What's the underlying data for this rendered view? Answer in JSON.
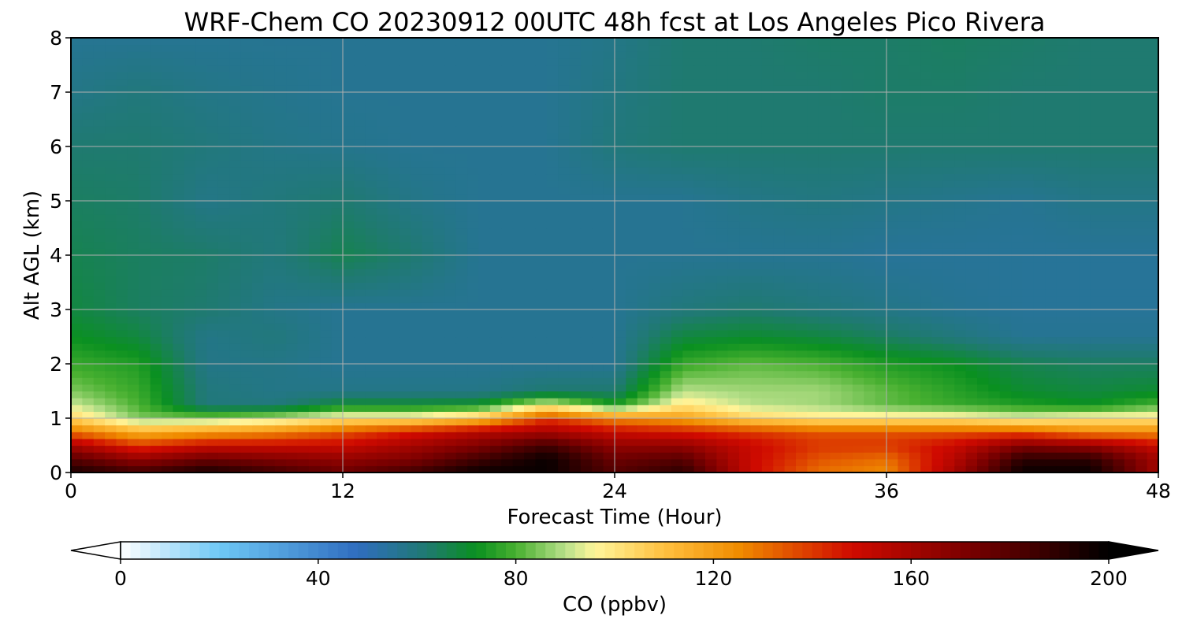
{
  "chart_data": {
    "type": "heatmap",
    "title": "WRF-Chem CO  20230912 00UTC 48h fcst at Los Angeles Pico Rivera",
    "xlabel": "Forecast Time (Hour)",
    "ylabel": "Alt AGL (km)",
    "xlim": [
      0,
      48
    ],
    "ylim": [
      0,
      8
    ],
    "xticks": [
      0,
      12,
      24,
      36,
      48
    ],
    "yticks": [
      0,
      1,
      2,
      3,
      4,
      5,
      6,
      7,
      8
    ],
    "grid": true,
    "x": [
      0,
      3,
      6,
      9,
      12,
      15,
      18,
      21,
      24,
      27,
      30,
      33,
      36,
      39,
      42,
      45,
      48
    ],
    "y": [
      0,
      0.25,
      0.5,
      0.75,
      1,
      1.25,
      1.5,
      2,
      2.5,
      3,
      4,
      5,
      6,
      7,
      8
    ],
    "z": [
      [
        195,
        185,
        195,
        185,
        175,
        185,
        198,
        198,
        180,
        190,
        150,
        130,
        125,
        160,
        198,
        198,
        160
      ],
      [
        180,
        165,
        175,
        170,
        165,
        170,
        185,
        198,
        175,
        180,
        150,
        135,
        130,
        155,
        190,
        190,
        160
      ],
      [
        160,
        140,
        150,
        150,
        150,
        160,
        170,
        185,
        165,
        165,
        150,
        140,
        140,
        150,
        170,
        165,
        150
      ],
      [
        130,
        115,
        120,
        125,
        135,
        145,
        155,
        160,
        150,
        145,
        140,
        135,
        135,
        135,
        135,
        125,
        125
      ],
      [
        105,
        85,
        85,
        90,
        100,
        100,
        110,
        140,
        125,
        120,
        105,
        100,
        100,
        100,
        95,
        100,
        100
      ],
      [
        92,
        80,
        60,
        60,
        70,
        70,
        72,
        95,
        75,
        100,
        90,
        88,
        82,
        78,
        75,
        72,
        80
      ],
      [
        85,
        78,
        60,
        58,
        58,
        58,
        58,
        62,
        62,
        90,
        88,
        88,
        82,
        76,
        70,
        68,
        70
      ],
      [
        78,
        75,
        58,
        58,
        56,
        56,
        56,
        56,
        56,
        78,
        82,
        80,
        75,
        72,
        66,
        64,
        64
      ],
      [
        72,
        68,
        58,
        60,
        56,
        56,
        56,
        56,
        56,
        68,
        70,
        68,
        64,
        60,
        56,
        56,
        56
      ],
      [
        68,
        64,
        62,
        58,
        56,
        56,
        56,
        56,
        56,
        60,
        62,
        60,
        58,
        56,
        55,
        55,
        55
      ],
      [
        66,
        64,
        63,
        60,
        66,
        62,
        56,
        56,
        56,
        56,
        56,
        56,
        55,
        55,
        55,
        55,
        55
      ],
      [
        64,
        63,
        58,
        60,
        62,
        58,
        56,
        56,
        56,
        56,
        58,
        59,
        58,
        57,
        56,
        58,
        58
      ],
      [
        62,
        62,
        60,
        58,
        57,
        56,
        56,
        56,
        60,
        62,
        62,
        62,
        62,
        62,
        62,
        62,
        62
      ],
      [
        58,
        60,
        58,
        57,
        56,
        56,
        56,
        56,
        59,
        62,
        62,
        62,
        63,
        63,
        62,
        62,
        62
      ],
      [
        56,
        56,
        56,
        56,
        56,
        56,
        56,
        56,
        58,
        62,
        62,
        63,
        63,
        64,
        63,
        62,
        62
      ]
    ],
    "colorbar": {
      "label": "CO  (ppbv)",
      "min": 0,
      "max": 200,
      "ticks": [
        0,
        40,
        80,
        120,
        160,
        200
      ],
      "extend": "both",
      "stops": [
        {
          "v": 0,
          "c": "#ffffff"
        },
        {
          "v": 20,
          "c": "#6ec8f5"
        },
        {
          "v": 48,
          "c": "#2f6dbf"
        },
        {
          "v": 62,
          "c": "#1f7a70"
        },
        {
          "v": 72,
          "c": "#0a9020"
        },
        {
          "v": 80,
          "c": "#48b030"
        },
        {
          "v": 90,
          "c": "#b8e08a"
        },
        {
          "v": 96,
          "c": "#fff59a"
        },
        {
          "v": 110,
          "c": "#ffc040"
        },
        {
          "v": 125,
          "c": "#f08c00"
        },
        {
          "v": 148,
          "c": "#d00a00"
        },
        {
          "v": 172,
          "c": "#780000"
        },
        {
          "v": 200,
          "c": "#000000"
        }
      ]
    }
  }
}
